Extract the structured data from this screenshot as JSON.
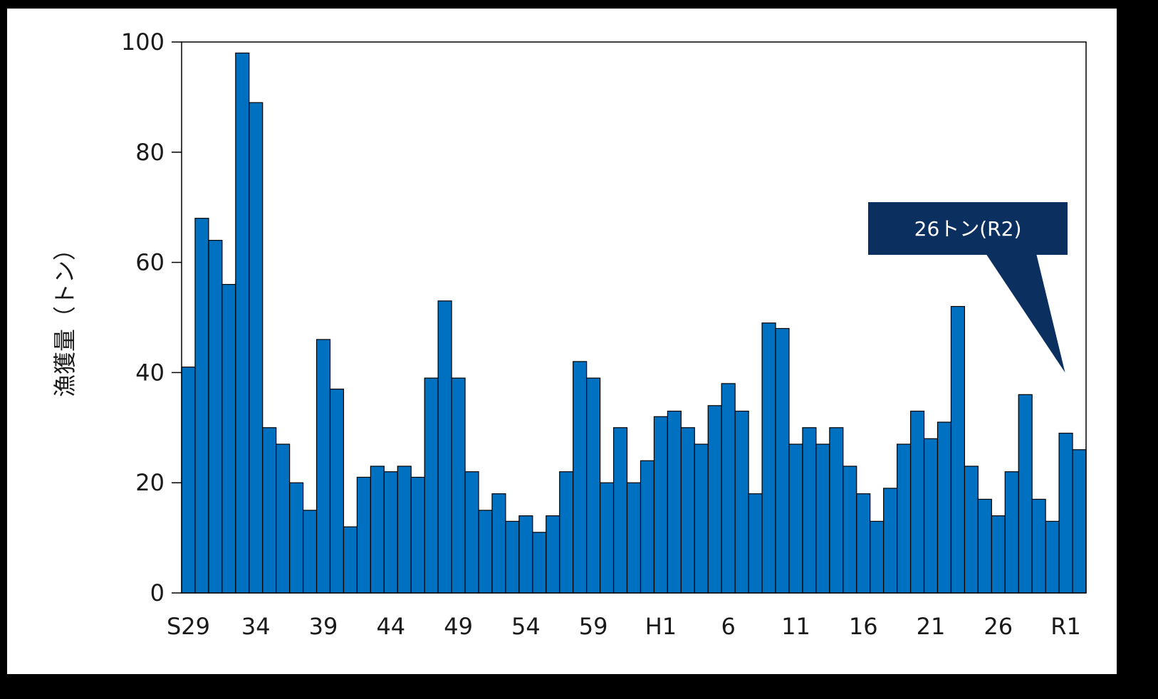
{
  "chart_data": {
    "type": "bar",
    "ylabel": "漁獲量（トン）",
    "xlabel": "",
    "ylim": [
      0,
      100
    ],
    "y_ticks": [
      0,
      20,
      40,
      60,
      80,
      100
    ],
    "x_tick_labels": [
      "S29",
      "34",
      "39",
      "44",
      "49",
      "54",
      "59",
      "H1",
      "6",
      "11",
      "16",
      "21",
      "26",
      "R1"
    ],
    "categories": [
      "S29",
      "S30",
      "S31",
      "S32",
      "S33",
      "S34",
      "S35",
      "S36",
      "S37",
      "S38",
      "S39",
      "S40",
      "S41",
      "S42",
      "S43",
      "S44",
      "S45",
      "S46",
      "S47",
      "S48",
      "S49",
      "S50",
      "S51",
      "S52",
      "S53",
      "S54",
      "S55",
      "S56",
      "S57",
      "S58",
      "S59",
      "S60",
      "S61",
      "S62",
      "S63",
      "H1",
      "H2",
      "H3",
      "H4",
      "H5",
      "H6",
      "H7",
      "H8",
      "H9",
      "H10",
      "H11",
      "H12",
      "H13",
      "H14",
      "H15",
      "H16",
      "H17",
      "H18",
      "H19",
      "H20",
      "H21",
      "H22",
      "H23",
      "H24",
      "H25",
      "H26",
      "H27",
      "H28",
      "H29",
      "H30",
      "R1",
      "R2"
    ],
    "values": [
      41,
      68,
      64,
      56,
      98,
      89,
      30,
      27,
      20,
      15,
      46,
      37,
      12,
      21,
      23,
      22,
      23,
      21,
      39,
      53,
      39,
      22,
      15,
      18,
      13,
      14,
      11,
      14,
      22,
      42,
      39,
      20,
      30,
      20,
      24,
      32,
      33,
      30,
      27,
      34,
      38,
      33,
      18,
      49,
      48,
      27,
      30,
      27,
      30,
      23,
      18,
      13,
      19,
      27,
      33,
      28,
      31,
      52,
      23,
      17,
      14,
      22,
      36,
      17,
      13,
      29,
      26
    ],
    "bar_color": "#0070c0",
    "grid": false,
    "annotation": {
      "text": "26トン(R2)",
      "target_category": "R2",
      "box_color": "#0b3060",
      "text_color": "#ffffff"
    }
  }
}
